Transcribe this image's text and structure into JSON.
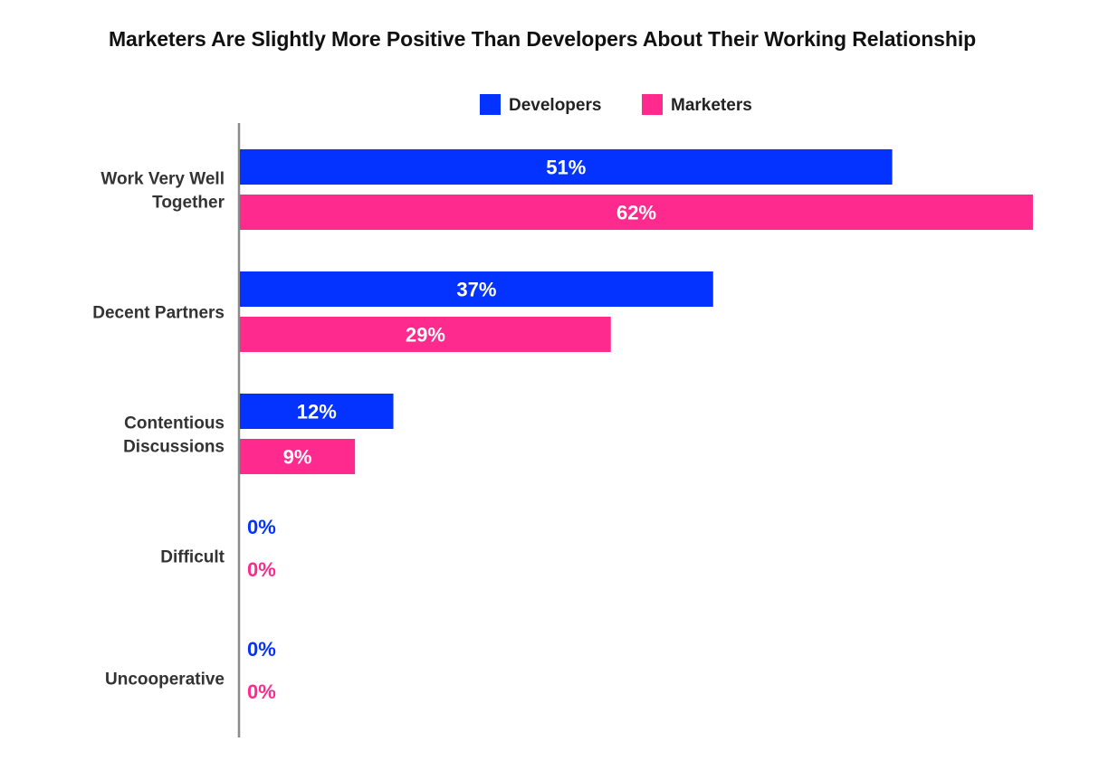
{
  "chart_data": {
    "type": "bar",
    "orientation": "horizontal",
    "title": "Marketers Are Slightly More Positive Than Developers About Their Working Relationship",
    "categories": [
      [
        "Work Very Well",
        "Together"
      ],
      [
        "Decent Partners"
      ],
      [
        "Contentious",
        "Discussions"
      ],
      [
        "Difficult"
      ],
      [
        "Uncooperative"
      ]
    ],
    "series": [
      {
        "name": "Developers",
        "color": "#0433ff",
        "values": [
          51,
          37,
          12,
          0,
          0
        ],
        "labels": [
          "51%",
          "37%",
          "12%",
          "0%",
          "0%"
        ]
      },
      {
        "name": "Marketers",
        "color": "#ff2a8d",
        "values": [
          62,
          29,
          9,
          0,
          0
        ],
        "labels": [
          "62%",
          "29%",
          "9%",
          "0%",
          "0%"
        ]
      }
    ],
    "value_unit": "%",
    "xlim": [
      0,
      62
    ],
    "grid": false,
    "legend_position": "top-center"
  }
}
